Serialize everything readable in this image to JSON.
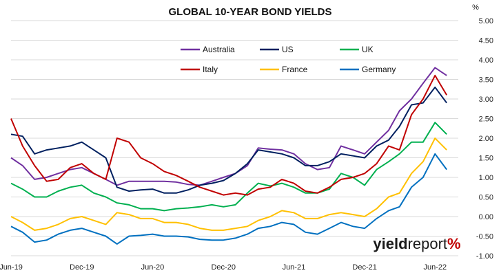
{
  "chart_data": {
    "type": "line",
    "title": "GLOBAL 10-YEAR BOND YIELDS",
    "unit": "%",
    "ylim": [
      -1.0,
      5.0
    ],
    "y_ticks": [
      "5.00",
      "4.50",
      "4.00",
      "3.50",
      "3.00",
      "2.50",
      "2.00",
      "1.50",
      "1.00",
      "0.50",
      "0.00",
      "-0.50",
      "-1.00"
    ],
    "x_ticks": [
      "Jun-19",
      "Dec-19",
      "Jun-20",
      "Dec-20",
      "Jun-21",
      "Dec-21",
      "Jun-22"
    ],
    "x_range": [
      "2019-06-01",
      "2022-07-31"
    ],
    "grid": "horizontal",
    "legend_position": "top-center",
    "series": [
      {
        "name": "Australia",
        "color": "#7030A0",
        "x": [
          "2019-06-01",
          "2019-07-01",
          "2019-08-01",
          "2019-09-01",
          "2019-10-01",
          "2019-11-01",
          "2019-12-01",
          "2020-01-01",
          "2020-02-01",
          "2020-03-01",
          "2020-04-01",
          "2020-05-01",
          "2020-06-01",
          "2020-07-01",
          "2020-08-01",
          "2020-09-01",
          "2020-10-01",
          "2020-11-01",
          "2020-12-01",
          "2021-01-01",
          "2021-02-01",
          "2021-03-01",
          "2021-04-01",
          "2021-05-01",
          "2021-06-01",
          "2021-07-01",
          "2021-08-01",
          "2021-09-01",
          "2021-10-01",
          "2021-11-01",
          "2021-12-01",
          "2022-01-01",
          "2022-02-01",
          "2022-03-01",
          "2022-04-01",
          "2022-05-01",
          "2022-06-01",
          "2022-07-01"
        ],
        "values": [
          1.5,
          1.3,
          0.95,
          1.0,
          1.1,
          1.2,
          1.25,
          1.1,
          0.95,
          0.8,
          0.9,
          0.9,
          0.9,
          0.9,
          0.88,
          0.82,
          0.8,
          0.9,
          1.0,
          1.1,
          1.3,
          1.75,
          1.72,
          1.7,
          1.6,
          1.35,
          1.2,
          1.25,
          1.8,
          1.7,
          1.6,
          1.9,
          2.2,
          2.7,
          3.0,
          3.4,
          3.8,
          3.6
        ]
      },
      {
        "name": "US",
        "color": "#002060",
        "x": [
          "2019-06-01",
          "2019-07-01",
          "2019-08-01",
          "2019-09-01",
          "2019-10-01",
          "2019-11-01",
          "2019-12-01",
          "2020-01-01",
          "2020-02-01",
          "2020-03-01",
          "2020-04-01",
          "2020-05-01",
          "2020-06-01",
          "2020-07-01",
          "2020-08-01",
          "2020-09-01",
          "2020-10-01",
          "2020-11-01",
          "2020-12-01",
          "2021-01-01",
          "2021-02-01",
          "2021-03-01",
          "2021-04-01",
          "2021-05-01",
          "2021-06-01",
          "2021-07-01",
          "2021-08-01",
          "2021-09-01",
          "2021-10-01",
          "2021-11-01",
          "2021-12-01",
          "2022-01-01",
          "2022-02-01",
          "2022-03-01",
          "2022-04-01",
          "2022-05-01",
          "2022-06-01",
          "2022-07-01"
        ],
        "values": [
          2.1,
          2.05,
          1.6,
          1.7,
          1.75,
          1.8,
          1.9,
          1.7,
          1.5,
          0.75,
          0.65,
          0.68,
          0.7,
          0.6,
          0.6,
          0.68,
          0.8,
          0.85,
          0.92,
          1.1,
          1.35,
          1.7,
          1.65,
          1.6,
          1.5,
          1.3,
          1.3,
          1.4,
          1.6,
          1.55,
          1.5,
          1.8,
          1.95,
          2.3,
          2.85,
          2.9,
          3.3,
          2.9
        ]
      },
      {
        "name": "UK",
        "color": "#00B050",
        "x": [
          "2019-06-01",
          "2019-07-01",
          "2019-08-01",
          "2019-09-01",
          "2019-10-01",
          "2019-11-01",
          "2019-12-01",
          "2020-01-01",
          "2020-02-01",
          "2020-03-01",
          "2020-04-01",
          "2020-05-01",
          "2020-06-01",
          "2020-07-01",
          "2020-08-01",
          "2020-09-01",
          "2020-10-01",
          "2020-11-01",
          "2020-12-01",
          "2021-01-01",
          "2021-02-01",
          "2021-03-01",
          "2021-04-01",
          "2021-05-01",
          "2021-06-01",
          "2021-07-01",
          "2021-08-01",
          "2021-09-01",
          "2021-10-01",
          "2021-11-01",
          "2021-12-01",
          "2022-01-01",
          "2022-02-01",
          "2022-03-01",
          "2022-04-01",
          "2022-05-01",
          "2022-06-01",
          "2022-07-01"
        ],
        "values": [
          0.85,
          0.7,
          0.5,
          0.5,
          0.65,
          0.75,
          0.8,
          0.6,
          0.5,
          0.35,
          0.3,
          0.2,
          0.2,
          0.15,
          0.2,
          0.22,
          0.25,
          0.3,
          0.25,
          0.3,
          0.6,
          0.85,
          0.78,
          0.85,
          0.75,
          0.6,
          0.6,
          0.7,
          1.1,
          1.0,
          0.8,
          1.2,
          1.4,
          1.6,
          1.9,
          1.9,
          2.4,
          2.1
        ]
      },
      {
        "name": "Italy",
        "color": "#C00000",
        "x": [
          "2019-06-01",
          "2019-07-01",
          "2019-08-01",
          "2019-09-01",
          "2019-10-01",
          "2019-11-01",
          "2019-12-01",
          "2020-01-01",
          "2020-02-01",
          "2020-03-01",
          "2020-04-01",
          "2020-05-01",
          "2020-06-01",
          "2020-07-01",
          "2020-08-01",
          "2020-09-01",
          "2020-10-01",
          "2020-11-01",
          "2020-12-01",
          "2021-01-01",
          "2021-02-01",
          "2021-03-01",
          "2021-04-01",
          "2021-05-01",
          "2021-06-01",
          "2021-07-01",
          "2021-08-01",
          "2021-09-01",
          "2021-10-01",
          "2021-11-01",
          "2021-12-01",
          "2022-01-01",
          "2022-02-01",
          "2022-03-01",
          "2022-04-01",
          "2022-05-01",
          "2022-06-01",
          "2022-07-01"
        ],
        "values": [
          2.5,
          1.8,
          1.3,
          0.9,
          0.95,
          1.25,
          1.35,
          1.1,
          0.95,
          2.0,
          1.9,
          1.5,
          1.35,
          1.15,
          1.05,
          0.9,
          0.75,
          0.65,
          0.55,
          0.6,
          0.55,
          0.7,
          0.75,
          0.95,
          0.85,
          0.65,
          0.6,
          0.75,
          0.95,
          1.0,
          1.1,
          1.35,
          1.8,
          1.7,
          2.6,
          3.0,
          3.6,
          3.1
        ]
      },
      {
        "name": "France",
        "color": "#FFC000",
        "x": [
          "2019-06-01",
          "2019-07-01",
          "2019-08-01",
          "2019-09-01",
          "2019-10-01",
          "2019-11-01",
          "2019-12-01",
          "2020-01-01",
          "2020-02-01",
          "2020-03-01",
          "2020-04-01",
          "2020-05-01",
          "2020-06-01",
          "2020-07-01",
          "2020-08-01",
          "2020-09-01",
          "2020-10-01",
          "2020-11-01",
          "2020-12-01",
          "2021-01-01",
          "2021-02-01",
          "2021-03-01",
          "2021-04-01",
          "2021-05-01",
          "2021-06-01",
          "2021-07-01",
          "2021-08-01",
          "2021-09-01",
          "2021-10-01",
          "2021-11-01",
          "2021-12-01",
          "2022-01-01",
          "2022-02-01",
          "2022-03-01",
          "2022-04-01",
          "2022-05-01",
          "2022-06-01",
          "2022-07-01"
        ],
        "values": [
          0.0,
          -0.15,
          -0.35,
          -0.3,
          -0.2,
          -0.05,
          0.0,
          -0.1,
          -0.2,
          0.1,
          0.05,
          -0.05,
          -0.05,
          -0.15,
          -0.15,
          -0.2,
          -0.3,
          -0.35,
          -0.35,
          -0.3,
          -0.25,
          -0.1,
          0.0,
          0.15,
          0.1,
          -0.05,
          -0.05,
          0.05,
          0.1,
          0.05,
          0.0,
          0.2,
          0.5,
          0.6,
          1.1,
          1.4,
          2.0,
          1.7
        ]
      },
      {
        "name": "Germany",
        "color": "#0070C0",
        "x": [
          "2019-06-01",
          "2019-07-01",
          "2019-08-01",
          "2019-09-01",
          "2019-10-01",
          "2019-11-01",
          "2019-12-01",
          "2020-01-01",
          "2020-02-01",
          "2020-03-01",
          "2020-04-01",
          "2020-05-01",
          "2020-06-01",
          "2020-07-01",
          "2020-08-01",
          "2020-09-01",
          "2020-10-01",
          "2020-11-01",
          "2020-12-01",
          "2021-01-01",
          "2021-02-01",
          "2021-03-01",
          "2021-04-01",
          "2021-05-01",
          "2021-06-01",
          "2021-07-01",
          "2021-08-01",
          "2021-09-01",
          "2021-10-01",
          "2021-11-01",
          "2021-12-01",
          "2022-01-01",
          "2022-02-01",
          "2022-03-01",
          "2022-04-01",
          "2022-05-01",
          "2022-06-01",
          "2022-07-01"
        ],
        "values": [
          -0.25,
          -0.4,
          -0.65,
          -0.6,
          -0.45,
          -0.35,
          -0.3,
          -0.4,
          -0.5,
          -0.7,
          -0.5,
          -0.48,
          -0.45,
          -0.5,
          -0.5,
          -0.52,
          -0.58,
          -0.6,
          -0.6,
          -0.55,
          -0.45,
          -0.3,
          -0.25,
          -0.15,
          -0.2,
          -0.4,
          -0.45,
          -0.3,
          -0.15,
          -0.25,
          -0.3,
          -0.05,
          0.15,
          0.25,
          0.75,
          1.0,
          1.6,
          1.2
        ]
      }
    ]
  },
  "branding": {
    "part1": "yield",
    "part2": "report",
    "symbol": "%"
  }
}
